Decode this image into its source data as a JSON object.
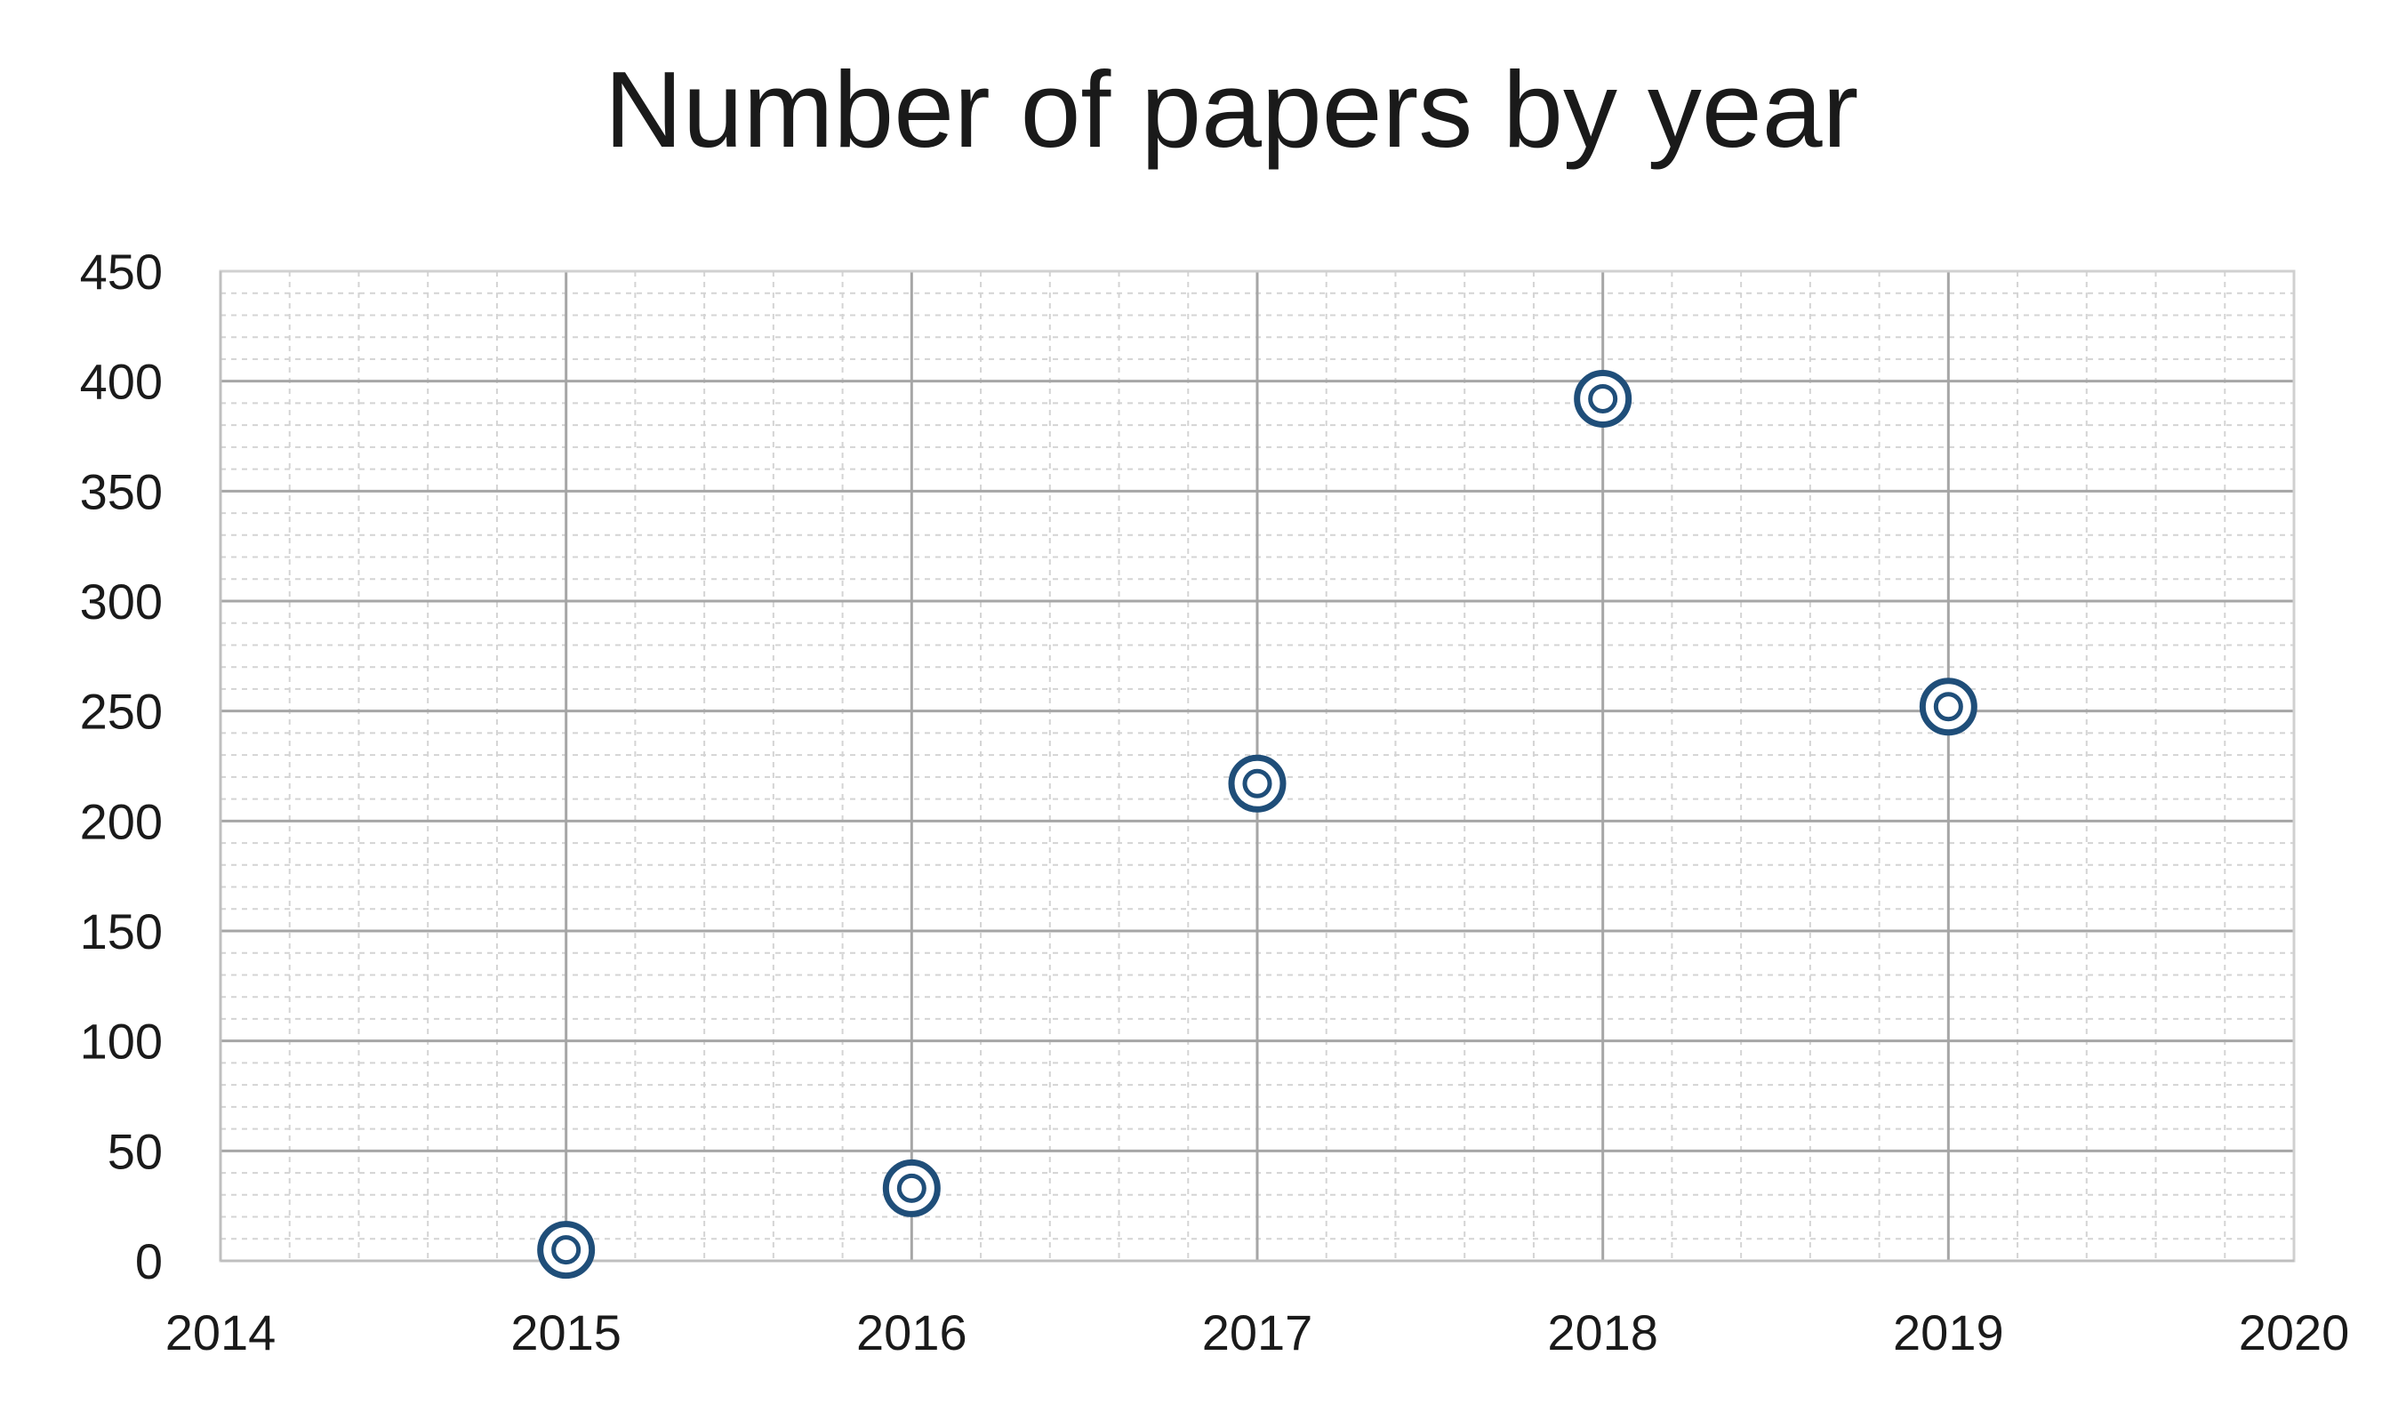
{
  "chart_data": {
    "type": "scatter",
    "title": "Number of papers by year",
    "xlabel": "",
    "ylabel": "",
    "xlim": [
      2014,
      2020
    ],
    "ylim": [
      0,
      450
    ],
    "x_ticks": [
      2014,
      2015,
      2016,
      2017,
      2018,
      2019,
      2020
    ],
    "y_ticks": [
      0,
      50,
      100,
      150,
      200,
      250,
      300,
      350,
      400,
      450
    ],
    "grid": true,
    "legend": "none",
    "marker": "double-circle",
    "series": [
      {
        "color": "#1f4e79",
        "points": [
          {
            "x": 2015,
            "y": 5
          },
          {
            "x": 2016,
            "y": 33
          },
          {
            "x": 2017,
            "y": 217
          },
          {
            "x": 2018,
            "y": 392
          },
          {
            "x": 2019,
            "y": 252
          }
        ]
      }
    ]
  }
}
